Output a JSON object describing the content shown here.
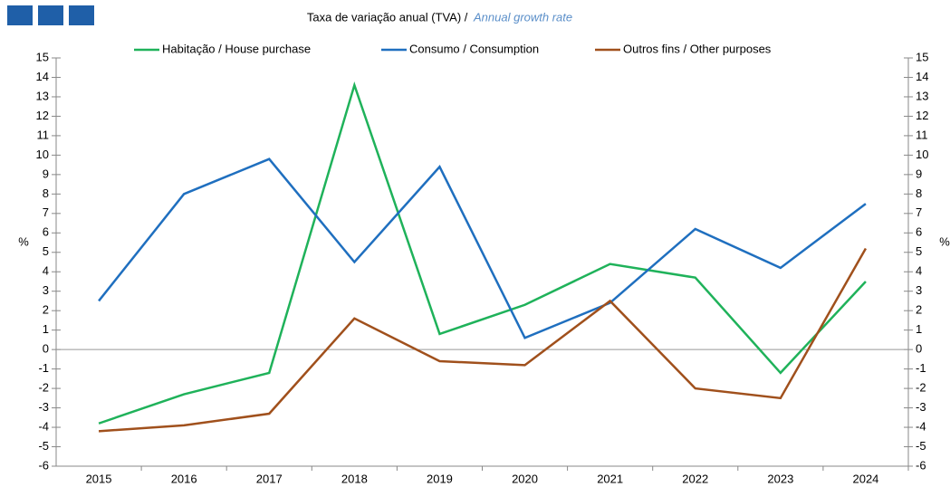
{
  "chart_data": {
    "type": "line",
    "subtitle": "Taxa de variação anual (TVA) / ",
    "subtitle_en": "Annual growth rate",
    "y_label": "%",
    "categories": [
      "2015",
      "2016",
      "2017",
      "2018",
      "2019",
      "2020",
      "2021",
      "2022",
      "2023",
      "2024"
    ],
    "series": [
      {
        "name": "Habitação / House purchase",
        "color": "#1fb25a",
        "values": [
          -3.8,
          -2.3,
          -1.2,
          13.6,
          0.8,
          2.3,
          4.4,
          3.7,
          -1.2,
          3.5
        ]
      },
      {
        "name": "Consumo / Consumption",
        "color": "#1f6fbf",
        "values": [
          2.5,
          8.0,
          9.8,
          4.5,
          9.4,
          0.6,
          2.4,
          6.2,
          4.2,
          7.5
        ]
      },
      {
        "name": "Outros fins / Other purposes",
        "color": "#a0501c",
        "values": [
          -4.2,
          -3.9,
          -3.3,
          1.6,
          -0.6,
          -0.8,
          2.5,
          -2.0,
          -2.5,
          5.2
        ]
      }
    ],
    "ylim": [
      -6,
      15
    ],
    "yticks": [
      -6,
      -5,
      -4,
      -3,
      -2,
      -1,
      0,
      1,
      2,
      3,
      4,
      5,
      6,
      7,
      8,
      9,
      10,
      11,
      12,
      13,
      14,
      15
    ],
    "legend": "top"
  }
}
